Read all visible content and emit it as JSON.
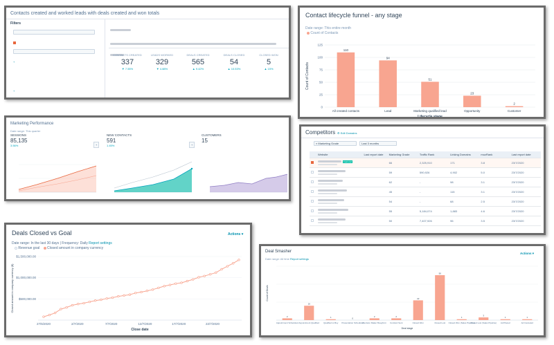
{
  "colors": {
    "accent": "#f8a590",
    "accent_dark": "#e8663d",
    "teal": "#00a4bd",
    "purple": "#b9a8da",
    "link": "#0091ae",
    "text": "#33475b"
  },
  "contacts_report": {
    "title": "Contacts created and worked leads with deals created and won totals",
    "filters_title": "Filters",
    "kpi": [
      {
        "label": "Contacts created",
        "value": "337",
        "change": "7.55%",
        "direction": "down"
      },
      {
        "label": "Leads worked",
        "value": "329",
        "change": "4.88%",
        "direction": "down"
      },
      {
        "label": "Deals created",
        "value": "565",
        "change": "9.42%",
        "direction": "up"
      },
      {
        "label": "Deals closed",
        "value": "54",
        "change": "10.53%",
        "direction": "up"
      },
      {
        "label": "Closed won",
        "value": "5",
        "change": "15%",
        "direction": "up"
      }
    ]
  },
  "funnel": {
    "title": "Contact lifecycle funnel - any stage",
    "date_range": "Date range: This entire month",
    "legend": "Count of Contacts",
    "chart_data": {
      "type": "bar",
      "categories": [
        "All created contacts",
        "Lead",
        "Marketing qualified lead",
        "Opportunity",
        "Customer"
      ],
      "values": [
        110,
        94,
        51,
        23,
        2
      ],
      "xlabel": "Lifecycle stage",
      "ylabel": "Count of Contacts",
      "ylim": [
        0,
        125
      ],
      "yticks": [
        0,
        25,
        50,
        75,
        100,
        125
      ],
      "grid": true,
      "legend_position": "top-left"
    }
  },
  "marketing": {
    "title": "Marketing Performance",
    "subtitle": "Date range: This quarter",
    "columns": [
      {
        "label": "Sessions",
        "value": "85,135",
        "change": "3.56%",
        "badge": "+",
        "color": "#f8a590"
      },
      {
        "label": "New contacts",
        "value": "591",
        "change": "1.45%",
        "badge": "+",
        "color": "#00bda5"
      },
      {
        "label": "Customers",
        "value": "15",
        "change": "",
        "badge": "",
        "color": "#b9a8da"
      }
    ]
  },
  "competitors": {
    "title": "Competitors",
    "edit_link": "Edit Domains",
    "filter_1": "Marketing Grade",
    "filter_2": "Last 3 months",
    "headers": [
      "Website",
      "Last report date",
      "",
      "Marketing Grade",
      "Traffic Rank",
      "Linking Domains",
      "mozRank",
      "Last report date"
    ],
    "rows": [
      {
        "grade": "66",
        "traffic": "2,325,910",
        "links": "171",
        "moz": "3.8",
        "date": "23/7/2020",
        "badge": "Featured"
      },
      {
        "grade": "59",
        "traffic": "590,926",
        "links": "4,902",
        "moz": "5.0",
        "date": "23/7/2020",
        "badge": ""
      },
      {
        "grade": "62",
        "traffic": "-",
        "links": "98",
        "moz": "3.1",
        "date": "23/7/2020",
        "badge": ""
      },
      {
        "grade": "45",
        "traffic": "-",
        "links": "115",
        "moz": "3.1",
        "date": "23/7/2020",
        "badge": ""
      },
      {
        "grade": "54",
        "traffic": "-",
        "links": "68",
        "moz": "2.5",
        "date": "23/7/2020",
        "badge": ""
      },
      {
        "grade": "55",
        "traffic": "5,184,074",
        "links": "1,883",
        "moz": "4.6",
        "date": "23/7/2020",
        "badge": ""
      },
      {
        "grade": "50",
        "traffic": "7,407,926",
        "links": "96",
        "moz": "3.5",
        "date": "23/7/2020",
        "badge": ""
      }
    ]
  },
  "deals_goal": {
    "title": "Deals Closed vs Goal",
    "actions": "Actions",
    "date_range": "Date range: In the last 30 days",
    "frequency": "Frequency: Daily",
    "report_settings": "Report settings",
    "chart_data": {
      "type": "line",
      "series": [
        {
          "name": "Revenue goal",
          "values": []
        },
        {
          "name": "Closed amount in company currency",
          "values": [
            80000,
            120000,
            170000,
            260000,
            300000,
            350000,
            380000,
            400000,
            430000,
            460000,
            480000,
            510000,
            530000,
            560000,
            580000,
            600000,
            640000,
            660000,
            690000,
            720000,
            760000,
            800000,
            830000,
            860000,
            880000,
            920000,
            960000,
            1010000,
            1040000,
            1080000,
            1120000,
            1200000,
            1270000,
            1340000,
            1420000
          ]
        }
      ],
      "xticks": [
        "27/6/2020",
        "2/7/2020",
        "7/7/2020",
        "12/7/2020",
        "17/7/2020",
        "22/7/2020"
      ],
      "yticks": [
        "$500,000.00",
        "$1,000,000.00",
        "$1,500,000.00"
      ],
      "ylim": [
        0,
        1500000
      ],
      "xlabel": "Close date",
      "ylabel": "Closed amount in company currency ($)",
      "legend_position": "top-left"
    }
  },
  "deal_smasher": {
    "title": "Deal Smasher",
    "actions": "Actions",
    "subtitle": "Date range: All time",
    "report_settings": "Report settings",
    "chart_data": {
      "type": "bar",
      "categories": [
        "Appointment Scheduled",
        "Appointment Qualified",
        "Qualified to Buy",
        "Presentation Scheduled",
        "Decision Maker Bought-In",
        "Contract Sent",
        "Closed Won",
        "Closed Lost",
        "Closed Won (Sales Pipeline)",
        "Closed Lost (Sales Pipeline)",
        "Ad Placed",
        "Ad Canceled"
      ],
      "values": [
        2,
        16,
        1,
        0,
        2,
        2,
        22,
        50,
        1,
        3,
        1,
        1
      ],
      "xlabel": "Deal stage",
      "ylabel": "Count of Deals",
      "ylim": [
        0,
        60
      ]
    }
  }
}
